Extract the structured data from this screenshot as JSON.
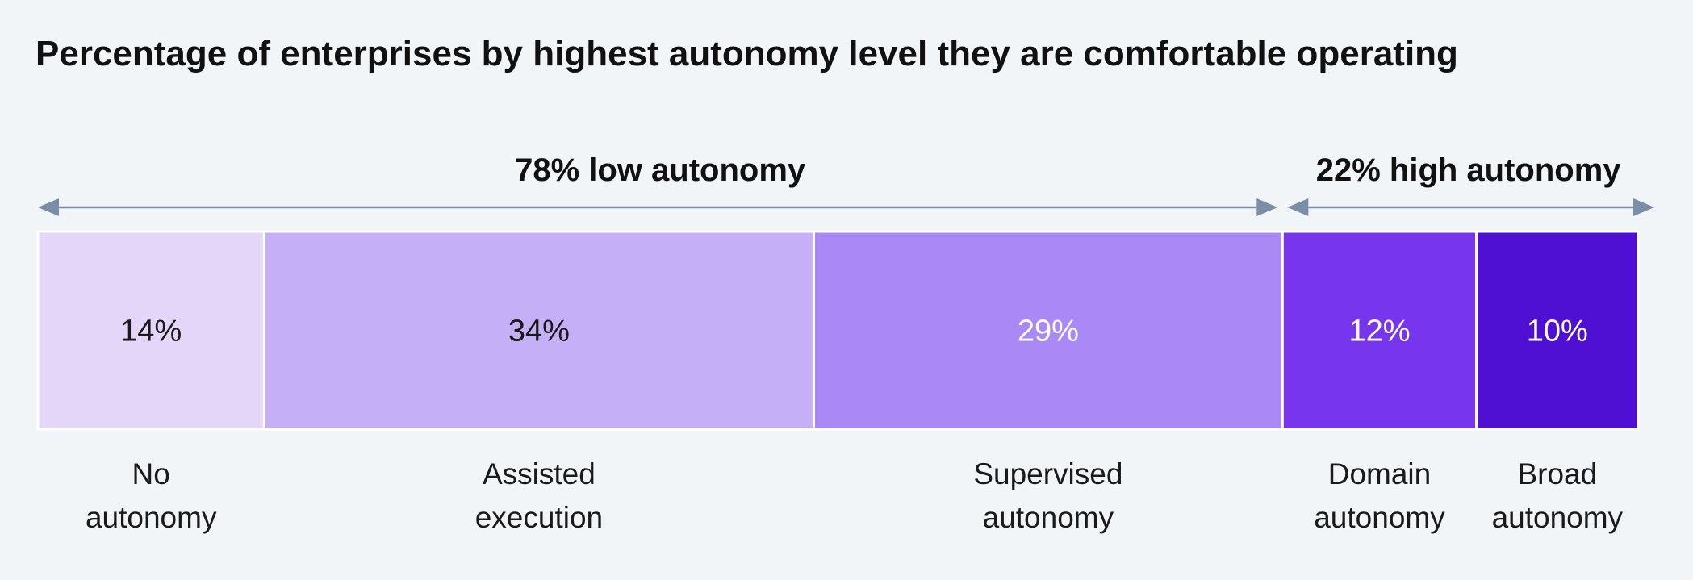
{
  "chart_data": {
    "type": "bar",
    "orientation": "horizontal-stacked",
    "title": "Percentage of enterprises by highest autonomy level they are comfortable operating",
    "unit": "%",
    "total": 100,
    "categories": [
      [
        "No",
        "autonomy"
      ],
      [
        "Assisted",
        "execution"
      ],
      [
        "Supervised",
        "autonomy"
      ],
      [
        "Domain",
        "autonomy"
      ],
      [
        "Broad",
        "autonomy"
      ]
    ],
    "values": [
      14,
      34,
      29,
      12,
      10
    ],
    "data_labels": [
      "14%",
      "34%",
      "29%",
      "12%",
      "10%"
    ],
    "colors": [
      "#e3d6f9",
      "#c5b0f8",
      "#aa88f6",
      "#7736ee",
      "#4f10d4"
    ],
    "label_colors": [
      "#1a1a1a",
      "#1a1a1a",
      "#ffffff",
      "#ffffff",
      "#ffffff"
    ],
    "groups": [
      {
        "label": "78% low autonomy",
        "from": 0,
        "to": 77
      },
      {
        "label": "22% high autonomy",
        "from": 77,
        "to": 100
      }
    ],
    "arrow_color": "#7b8ea8",
    "legend": "none",
    "grid": false
  }
}
